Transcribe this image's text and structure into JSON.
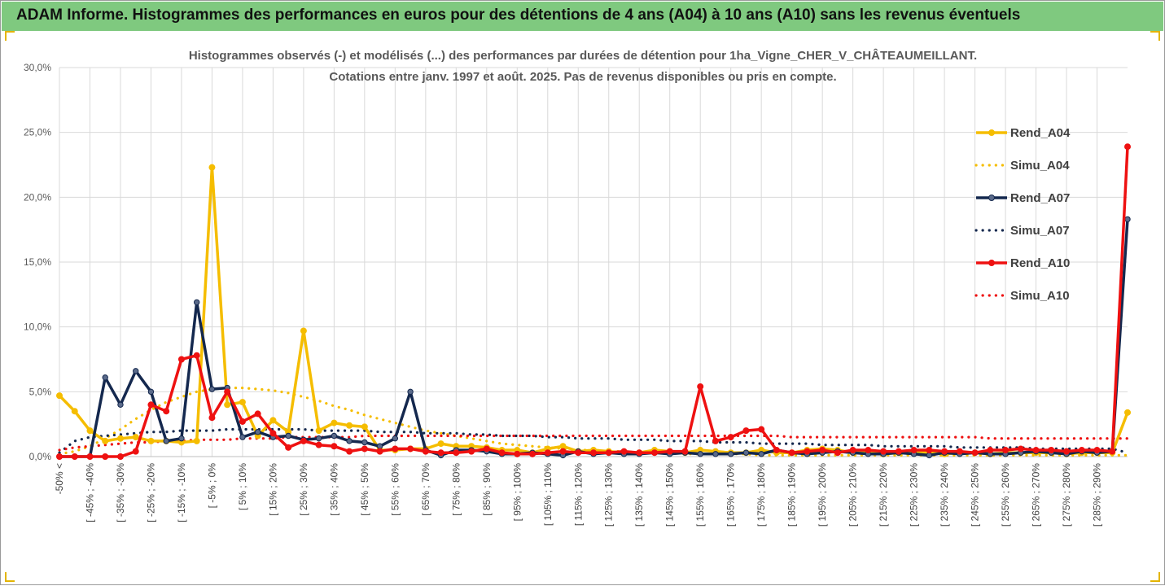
{
  "header": {
    "title": "ADAM Informe. Histogrammes des performances en euros pour des détentions de 4 ans (A04) à 10 ans (A10) sans les revenus éventuels"
  },
  "colors": {
    "banner": "#7fc97f",
    "A04": "#f5bd00",
    "A07": "#14284e",
    "A10": "#ee1111"
  },
  "chart_data": {
    "type": "line",
    "title_lines": [
      "Histogrammes observés (-) et modélisés (...) des performances par durées de détention pour 1ha_Vigne_CHER_V_CHÂTEAUMEILLANT.",
      "Cotations entre janv. 1997 et août. 2025. Pas de revenus disponibles ou pris en compte."
    ],
    "ylim": [
      0,
      30
    ],
    "y_ticks": [
      "0,0%",
      "5,0%",
      "10,0%",
      "15,0%",
      "20,0%",
      "25,0%",
      "30,0%"
    ],
    "y_tick_values": [
      0,
      5,
      10,
      15,
      20,
      25,
      30
    ],
    "x_tick_labels": [
      "-50% <",
      "[ -45% ; -40%",
      "[ -35% ; -30%",
      "[ -25% ; -20%",
      "[ -15% ; -10%",
      "[ -5% ; 0%",
      "[ 5% ; 10%",
      "[ 15% ; 20%",
      "[ 25% ; 30%",
      "[ 35% ; 40%",
      "[ 45% ; 50%",
      "[ 55% ; 60%",
      "[ 65% ; 70%",
      "[ 75% ; 80%",
      "[ 85% ; 90%",
      "[ 95% ; 100%",
      "[ 105% ; 110%",
      "[ 115% ; 120%",
      "[ 125% ; 130%",
      "[ 135% ; 140%",
      "[ 145% ; 150%",
      "[ 155% ; 160%",
      "[ 165% ; 170%",
      "[ 175% ; 180%",
      "[ 185% ; 190%",
      "[ 195% ; 200%",
      "[ 205% ; 210%",
      "[ 215% ; 220%",
      "[ 225% ; 230%",
      "[ 235% ; 240%",
      "[ 245% ; 250%",
      "[ 255% ; 260%",
      "[ 265% ; 270%",
      "[ 275% ; 280%",
      "[ 285% ; 290%"
    ],
    "legend_position": "right",
    "grid": true,
    "series": [
      {
        "name": "Rend_A04",
        "style": "solid",
        "color": "#f5bd00",
        "values": [
          4.7,
          3.5,
          2.0,
          1.2,
          1.4,
          1.5,
          1.2,
          1.2,
          1.1,
          1.2,
          22.3,
          4.0,
          4.2,
          1.6,
          2.8,
          1.9,
          9.7,
          2.0,
          2.6,
          2.4,
          2.3,
          0.5,
          0.5,
          0.6,
          0.6,
          1.0,
          0.8,
          0.8,
          0.7,
          0.5,
          0.5,
          0.3,
          0.6,
          0.8,
          0.4,
          0.5,
          0.4,
          0.3,
          0.3,
          0.5,
          0.4,
          0.3,
          0.5,
          0.4,
          0.3,
          0.3,
          0.5,
          0.3,
          0.3,
          0.5,
          0.6,
          0.5,
          0.3,
          0.3,
          0.2,
          0.3,
          0.3,
          0.3,
          0.2,
          0.3,
          0.3,
          0.2,
          0.3,
          0.3,
          0.3,
          0.3,
          0.2,
          0.3,
          0.3,
          0.3,
          3.4
        ]
      },
      {
        "name": "Simu_A04",
        "style": "dotted",
        "color": "#f5bd00",
        "values": [
          0.2,
          0.4,
          0.8,
          1.4,
          2.1,
          2.9,
          3.6,
          4.2,
          4.6,
          5.0,
          5.2,
          5.3,
          5.3,
          5.2,
          5.1,
          4.9,
          4.6,
          4.3,
          3.9,
          3.6,
          3.2,
          2.9,
          2.6,
          2.3,
          2.0,
          1.8,
          1.6,
          1.4,
          1.2,
          1.0,
          0.9,
          0.8,
          0.7,
          0.6,
          0.5,
          0.5,
          0.4,
          0.4,
          0.3,
          0.3,
          0.3,
          0.2,
          0.2,
          0.2,
          0.2,
          0.2,
          0.1,
          0.1,
          0.1,
          0.1,
          0.1,
          0.1,
          0.1,
          0.1,
          0.1,
          0.1,
          0.1,
          0.1,
          0.1,
          0.1,
          0.1,
          0.1,
          0.1,
          0.1,
          0.1,
          0.1,
          0.1,
          0.1,
          0.1,
          0.1,
          0.1
        ]
      },
      {
        "name": "Rend_A07",
        "style": "solid",
        "color": "#14284e",
        "values": [
          0,
          0,
          0,
          6.1,
          4.0,
          6.6,
          5.0,
          1.2,
          1.4,
          11.9,
          5.2,
          5.3,
          1.5,
          1.9,
          1.5,
          1.6,
          1.3,
          1.4,
          1.6,
          1.2,
          1.1,
          0.8,
          1.4,
          5.0,
          0.5,
          0.1,
          0.5,
          0.5,
          0.4,
          0.2,
          0.2,
          0.3,
          0.2,
          0.1,
          0.4,
          0.2,
          0.3,
          0.2,
          0.2,
          0.3,
          0.2,
          0.3,
          0.2,
          0.2,
          0.2,
          0.3,
          0.2,
          0.5,
          0.3,
          0.2,
          0.3,
          0.4,
          0.3,
          0.2,
          0.2,
          0.3,
          0.2,
          0.1,
          0.3,
          0.2,
          0.3,
          0.2,
          0.2,
          0.3,
          0.4,
          0.3,
          0.2,
          0.4,
          0.3,
          0.4,
          18.3
        ]
      },
      {
        "name": "Simu_A07",
        "style": "dotted",
        "color": "#14284e",
        "values": [
          0.3,
          1.2,
          1.5,
          1.6,
          1.7,
          1.8,
          1.9,
          1.9,
          2.0,
          2.0,
          2.0,
          2.1,
          2.1,
          2.1,
          2.1,
          2.1,
          2.1,
          2.0,
          2.0,
          2.0,
          2.0,
          1.9,
          1.9,
          1.9,
          1.8,
          1.8,
          1.8,
          1.7,
          1.7,
          1.6,
          1.6,
          1.6,
          1.5,
          1.5,
          1.4,
          1.4,
          1.4,
          1.3,
          1.3,
          1.3,
          1.2,
          1.2,
          1.2,
          1.1,
          1.1,
          1.1,
          1.0,
          1.0,
          1.0,
          1.0,
          0.9,
          0.9,
          0.9,
          0.9,
          0.8,
          0.8,
          0.8,
          0.8,
          0.8,
          0.7,
          0.7,
          0.7,
          0.7,
          0.7,
          0.6,
          0.6,
          0.6,
          0.6,
          0.6,
          0.6,
          0.3
        ]
      },
      {
        "name": "Rend_A10",
        "style": "solid",
        "color": "#ee1111",
        "values": [
          0,
          0,
          0,
          0,
          0,
          0.4,
          4.0,
          3.5,
          7.5,
          7.8,
          3.0,
          5.0,
          2.7,
          3.3,
          1.8,
          0.7,
          1.2,
          0.9,
          0.8,
          0.4,
          0.6,
          0.4,
          0.6,
          0.6,
          0.4,
          0.3,
          0.3,
          0.4,
          0.6,
          0.3,
          0.2,
          0.2,
          0.3,
          0.4,
          0.3,
          0.3,
          0.3,
          0.4,
          0.3,
          0.3,
          0.4,
          0.4,
          5.4,
          1.2,
          1.5,
          2.0,
          2.1,
          0.5,
          0.3,
          0.4,
          0.5,
          0.3,
          0.5,
          0.5,
          0.4,
          0.4,
          0.5,
          0.5,
          0.4,
          0.4,
          0.3,
          0.5,
          0.5,
          0.6,
          0.5,
          0.5,
          0.4,
          0.5,
          0.5,
          0.4,
          23.9
        ]
      },
      {
        "name": "Simu_A10",
        "style": "dotted",
        "color": "#ee1111",
        "values": [
          0.5,
          0.7,
          0.8,
          0.9,
          1.0,
          1.1,
          1.1,
          1.2,
          1.2,
          1.3,
          1.3,
          1.3,
          1.4,
          1.4,
          1.4,
          1.5,
          1.5,
          1.5,
          1.5,
          1.5,
          1.6,
          1.6,
          1.6,
          1.6,
          1.6,
          1.6,
          1.6,
          1.6,
          1.6,
          1.6,
          1.6,
          1.6,
          1.6,
          1.6,
          1.6,
          1.6,
          1.6,
          1.6,
          1.6,
          1.6,
          1.6,
          1.6,
          1.6,
          1.6,
          1.6,
          1.6,
          1.6,
          1.6,
          1.5,
          1.5,
          1.5,
          1.5,
          1.5,
          1.5,
          1.5,
          1.5,
          1.5,
          1.5,
          1.5,
          1.5,
          1.5,
          1.4,
          1.4,
          1.4,
          1.4,
          1.4,
          1.4,
          1.4,
          1.4,
          1.4,
          1.4
        ]
      }
    ]
  }
}
